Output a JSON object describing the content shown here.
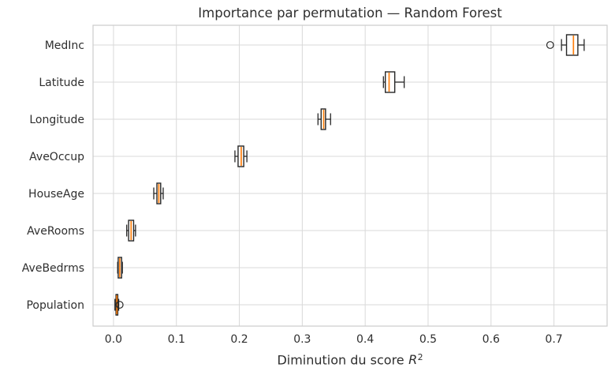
{
  "chart_data": {
    "type": "boxplot",
    "orientation": "horizontal",
    "title": "Importance par permutation — Random Forest",
    "xlabel": "Diminution du score R²",
    "xlabel_prefix": "Diminution du score",
    "xlabel_math": "R",
    "xlabel_sup": "2",
    "categories": [
      "MedInc",
      "Latitude",
      "Longitude",
      "AveOccup",
      "HouseAge",
      "AveRooms",
      "AveBedrms",
      "Population"
    ],
    "boxes": [
      {
        "label": "MedInc",
        "whisker_low": 0.712,
        "q1": 0.72,
        "median": 0.731,
        "q3": 0.738,
        "whisker_high": 0.748,
        "outliers": [
          0.694
        ]
      },
      {
        "label": "Latitude",
        "whisker_low": 0.429,
        "q1": 0.432,
        "median": 0.438,
        "q3": 0.447,
        "whisker_high": 0.462,
        "outliers": []
      },
      {
        "label": "Longitude",
        "whisker_low": 0.325,
        "q1": 0.33,
        "median": 0.334,
        "q3": 0.337,
        "whisker_high": 0.345,
        "outliers": []
      },
      {
        "label": "AveOccup",
        "whisker_low": 0.193,
        "q1": 0.198,
        "median": 0.203,
        "q3": 0.207,
        "whisker_high": 0.212,
        "outliers": []
      },
      {
        "label": "HouseAge",
        "whisker_low": 0.064,
        "q1": 0.069,
        "median": 0.072,
        "q3": 0.075,
        "whisker_high": 0.079,
        "outliers": []
      },
      {
        "label": "AveRooms",
        "whisker_low": 0.021,
        "q1": 0.024,
        "median": 0.028,
        "q3": 0.032,
        "whisker_high": 0.035,
        "outliers": []
      },
      {
        "label": "AveBedrms",
        "whisker_low": 0.0066,
        "q1": 0.0075,
        "median": 0.01,
        "q3": 0.0129,
        "whisker_high": 0.0141,
        "outliers": []
      },
      {
        "label": "Population",
        "whisker_low": 0.0023,
        "q1": 0.004,
        "median": 0.0054,
        "q3": 0.0068,
        "whisker_high": 0.0083,
        "outliers": [
          0.0098
        ]
      }
    ],
    "xticks": [
      0.0,
      0.1,
      0.2,
      0.3,
      0.4,
      0.5,
      0.6,
      0.7
    ],
    "xtick_labels": [
      "0.0",
      "0.1",
      "0.2",
      "0.3",
      "0.4",
      "0.5",
      "0.6",
      "0.7"
    ],
    "xlim": [
      -0.0325,
      0.7845
    ],
    "grid": true,
    "colors": {
      "median": "#ff7f0e",
      "box_edge": "#262626",
      "box_fill": "#ffffff",
      "whisker": "#262626",
      "outlier": "#262626",
      "grid": "#d9d9d9",
      "spine": "#cccccc",
      "text": "#2e2e2e",
      "background": "#ffffff"
    }
  }
}
